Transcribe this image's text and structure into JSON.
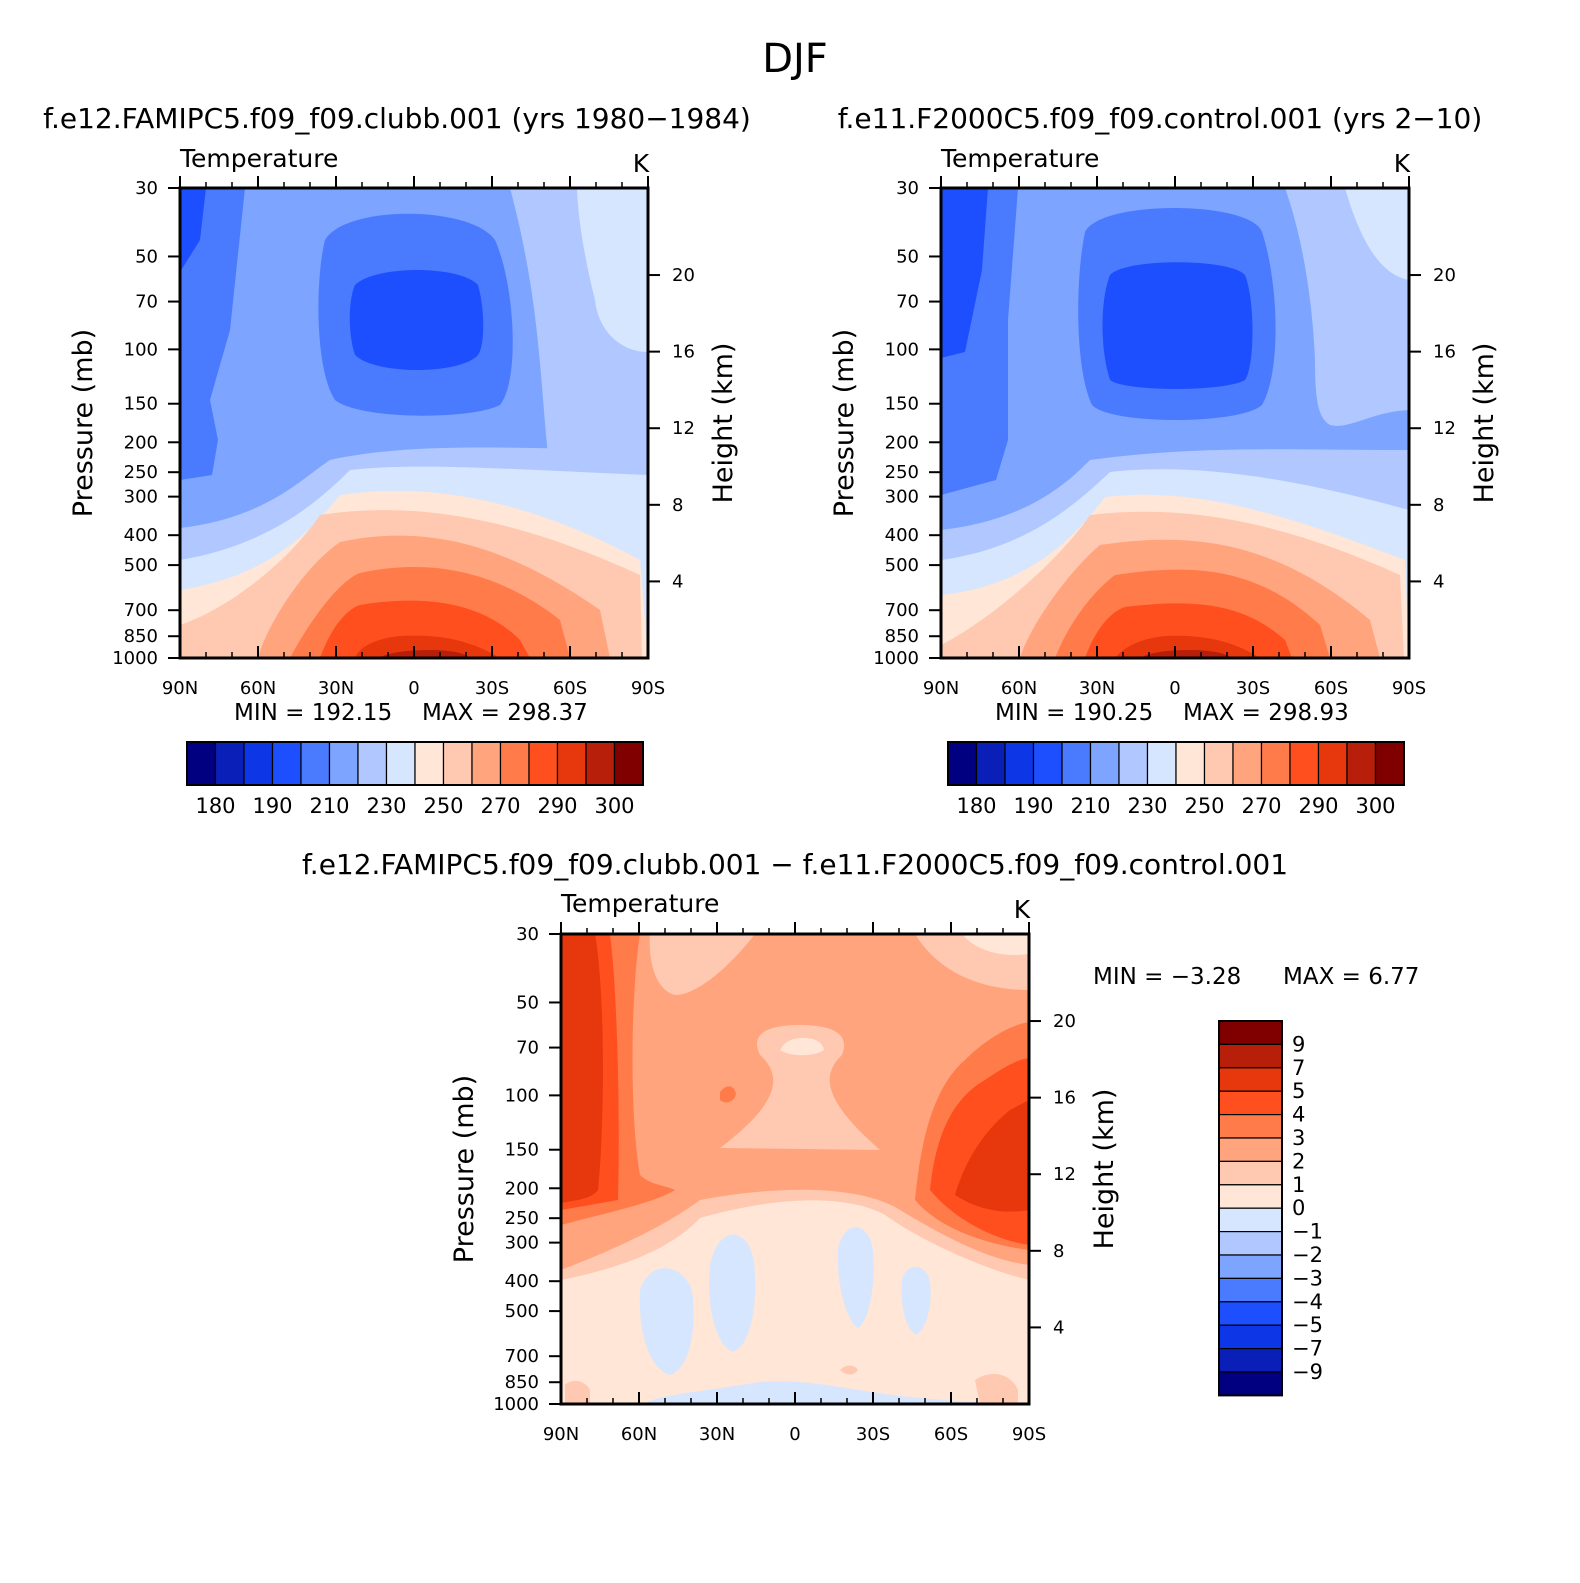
{
  "figure_title": "DJF",
  "chart_data": [
    {
      "type": "contour",
      "title": "f.e12.FAMIPC5.f09_f09.clubb.001 (yrs 1980−1984)",
      "variable": "Temperature",
      "units": "K",
      "xlabel": "",
      "ylabel": "Pressure (mb)",
      "right_ylabel": "Height (km)",
      "x_ticks": [
        "90N",
        "60N",
        "30N",
        "0",
        "30S",
        "60S",
        "90S"
      ],
      "x_values": [
        90,
        60,
        30,
        0,
        -30,
        -60,
        -90
      ],
      "y_ticks": [
        "30",
        "50",
        "70",
        "100",
        "150",
        "200",
        "250",
        "300",
        "400",
        "500",
        "700",
        "850",
        "1000"
      ],
      "y_values": [
        30,
        50,
        70,
        100,
        150,
        200,
        250,
        300,
        400,
        500,
        700,
        850,
        1000
      ],
      "height_ticks": [
        "20",
        "16",
        "12",
        "8",
        "4"
      ],
      "height_values": [
        20,
        16,
        12,
        8,
        4
      ],
      "ylim": [
        1000,
        30
      ],
      "min_label": "MIN = 192.15",
      "max_label": "MAX = 298.37",
      "min": 192.15,
      "max": 298.37,
      "colorbar_labels": [
        "180",
        "190",
        "210",
        "230",
        "250",
        "270",
        "290",
        "300"
      ],
      "contour_levels": [
        180,
        185,
        190,
        200,
        210,
        220,
        230,
        240,
        250,
        260,
        270,
        280,
        290,
        295,
        300
      ]
    },
    {
      "type": "contour",
      "title": "f.e11.F2000C5.f09_f09.control.001 (yrs 2−10)",
      "variable": "Temperature",
      "units": "K",
      "xlabel": "",
      "ylabel": "Pressure (mb)",
      "right_ylabel": "Height (km)",
      "x_ticks": [
        "90N",
        "60N",
        "30N",
        "0",
        "30S",
        "60S",
        "90S"
      ],
      "x_values": [
        90,
        60,
        30,
        0,
        -30,
        -60,
        -90
      ],
      "y_ticks": [
        "30",
        "50",
        "70",
        "100",
        "150",
        "200",
        "250",
        "300",
        "400",
        "500",
        "700",
        "850",
        "1000"
      ],
      "y_values": [
        30,
        50,
        70,
        100,
        150,
        200,
        250,
        300,
        400,
        500,
        700,
        850,
        1000
      ],
      "height_ticks": [
        "20",
        "16",
        "12",
        "8",
        "4"
      ],
      "height_values": [
        20,
        16,
        12,
        8,
        4
      ],
      "ylim": [
        1000,
        30
      ],
      "min_label": "MIN = 190.25",
      "max_label": "MAX = 298.93",
      "min": 190.25,
      "max": 298.93,
      "colorbar_labels": [
        "180",
        "190",
        "210",
        "230",
        "250",
        "270",
        "290",
        "300"
      ],
      "contour_levels": [
        180,
        185,
        190,
        200,
        210,
        220,
        230,
        240,
        250,
        260,
        270,
        280,
        290,
        295,
        300
      ]
    },
    {
      "type": "contour",
      "title": "f.e12.FAMIPC5.f09_f09.clubb.001 − f.e11.F2000C5.f09_f09.control.001",
      "variable": "Temperature",
      "units": "K",
      "xlabel": "",
      "ylabel": "Pressure (mb)",
      "right_ylabel": "Height (km)",
      "x_ticks": [
        "90N",
        "60N",
        "30N",
        "0",
        "30S",
        "60S",
        "90S"
      ],
      "x_values": [
        90,
        60,
        30,
        0,
        -30,
        -60,
        -90
      ],
      "y_ticks": [
        "30",
        "50",
        "70",
        "100",
        "150",
        "200",
        "250",
        "300",
        "400",
        "500",
        "700",
        "850",
        "1000"
      ],
      "y_values": [
        30,
        50,
        70,
        100,
        150,
        200,
        250,
        300,
        400,
        500,
        700,
        850,
        1000
      ],
      "height_ticks": [
        "20",
        "16",
        "12",
        "8",
        "4"
      ],
      "height_values": [
        20,
        16,
        12,
        8,
        4
      ],
      "ylim": [
        1000,
        30
      ],
      "min_label": "MIN = −3.28",
      "max_label": "MAX = 6.77",
      "min": -3.28,
      "max": 6.77,
      "colorbar_labels": [
        "9",
        "7",
        "5",
        "4",
        "3",
        "2",
        "1",
        "0",
        "−1",
        "−2",
        "−3",
        "−4",
        "−5",
        "−7",
        "−9"
      ],
      "contour_levels": [
        -9,
        -7,
        -5,
        -4,
        -3,
        -2,
        -1,
        0,
        1,
        2,
        3,
        4,
        5,
        7,
        9
      ]
    }
  ],
  "colors": {
    "abs_scale": [
      "#000080",
      "#0a1fb8",
      "#0d37e6",
      "#1e4fff",
      "#4a7bff",
      "#7da4ff",
      "#b0c8ff",
      "#d6e6ff",
      "#ffe6d6",
      "#ffc8b0",
      "#ffa47d",
      "#ff7b4a",
      "#ff4f1e",
      "#e6370d",
      "#b81f0a",
      "#800000"
    ],
    "diff_scale": [
      "#800000",
      "#b81f0a",
      "#e6370d",
      "#ff4f1e",
      "#ff7b4a",
      "#ffa47d",
      "#ffc8b0",
      "#ffe6d6",
      "#d6e6ff",
      "#b0c8ff",
      "#7da4ff",
      "#4a7bff",
      "#1e4fff",
      "#0d37e6",
      "#0a1fb8",
      "#000080"
    ]
  }
}
